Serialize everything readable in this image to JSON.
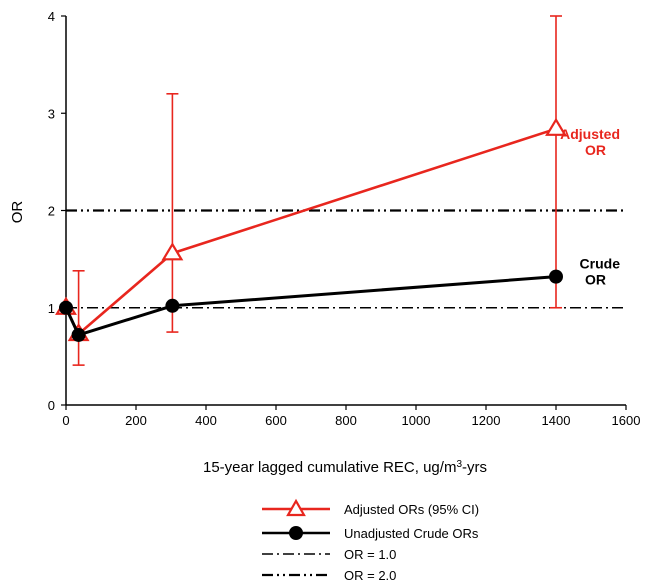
{
  "chart_data": {
    "type": "line",
    "title": "",
    "xlabel": "15-year lagged cumulative REC, ug/m",
    "xlabel_sup": "3",
    "xlabel_suffix": "-yrs",
    "ylabel": "OR",
    "xlim": [
      0,
      1600
    ],
    "ylim": [
      0,
      4
    ],
    "x_ticks": [
      0,
      200,
      400,
      600,
      800,
      1000,
      1200,
      1400,
      1600
    ],
    "y_ticks": [
      0,
      1,
      2,
      3,
      4
    ],
    "grid": false,
    "legend_position": "bottom",
    "series": [
      {
        "name": "Adjusted ORs (95% CI)",
        "color": "#e8261e",
        "marker": "triangle-open",
        "points": [
          {
            "x": 0,
            "y": 1.0
          },
          {
            "x": 36,
            "y": 0.73,
            "lower": 0.41,
            "upper": 1.38
          },
          {
            "x": 304,
            "y": 1.56,
            "lower": 0.75,
            "upper": 3.2
          },
          {
            "x": 1400,
            "y": 2.84,
            "lower": 1.0,
            "upper": 4.0
          }
        ]
      },
      {
        "name": "Unadjusted Crude ORs",
        "color": "#000000",
        "marker": "circle-filled",
        "points": [
          {
            "x": 0,
            "y": 1.0
          },
          {
            "x": 36,
            "y": 0.72
          },
          {
            "x": 304,
            "y": 1.02
          },
          {
            "x": 1400,
            "y": 1.32
          }
        ]
      }
    ],
    "reference_lines": [
      {
        "name": "OR = 1.0",
        "y": 1.0,
        "dash": "dash-dot"
      },
      {
        "name": "OR = 2.0",
        "y": 2.0,
        "dash": "dash-dot-dot"
      }
    ],
    "annotations": [
      {
        "lines": [
          "Adjusted",
          "OR"
        ],
        "color": "#e8261e",
        "series": 0
      },
      {
        "lines": [
          "Crude",
          "OR"
        ],
        "color": "#000000",
        "series": 1
      }
    ]
  }
}
